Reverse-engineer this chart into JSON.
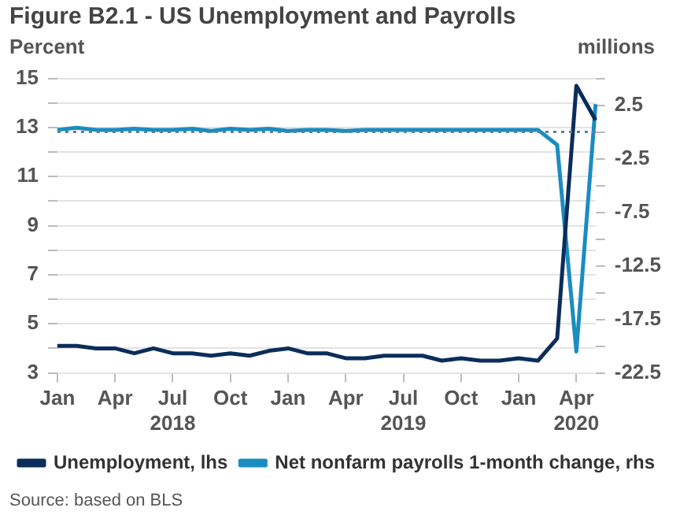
{
  "chart_data": {
    "type": "line",
    "title": "Figure B2.1 - US Unemployment and Payrolls",
    "ylabel": "Percent",
    "y2label": "millions",
    "categories": [
      "Jan",
      null,
      null,
      "Apr",
      null,
      null,
      "Jul\n2018",
      null,
      null,
      "Oct",
      null,
      null,
      "Jan",
      null,
      null,
      "Apr",
      null,
      null,
      "Jul\n2019",
      null,
      null,
      "Oct",
      null,
      null,
      "Jan",
      null,
      null,
      "Apr\n2020",
      null
    ],
    "series": [
      {
        "name": "Unemployment, lhs",
        "color": "#0b2d5b",
        "values": [
          4.1,
          4.1,
          4.0,
          4.0,
          3.8,
          4.0,
          3.8,
          3.8,
          3.7,
          3.8,
          3.7,
          3.9,
          4.0,
          3.8,
          3.8,
          3.6,
          3.6,
          3.7,
          3.7,
          3.7,
          3.5,
          3.6,
          3.5,
          3.5,
          3.6,
          3.5,
          4.4,
          14.7,
          13.3
        ]
      },
      {
        "name": "Net nonfarm payrolls 1-month change, rhs",
        "color": "#1a8cc0",
        "axis": "y2",
        "values": [
          0.2,
          0.4,
          0.2,
          0.2,
          0.3,
          0.2,
          0.2,
          0.3,
          0.1,
          0.3,
          0.2,
          0.3,
          0.1,
          0.2,
          0.2,
          0.1,
          0.2,
          0.2,
          0.2,
          0.2,
          0.2,
          0.2,
          0.2,
          0.2,
          0.2,
          0.2,
          -1.2,
          -20.5,
          2.6
        ]
      }
    ],
    "ylim": [
      3,
      15
    ],
    "yticks": [
      3,
      {
        "value": 4,
        "label": null
      },
      5,
      {
        "value": 6,
        "label": null
      },
      7,
      {
        "value": 8,
        "label": null
      },
      9,
      {
        "value": 10,
        "label": null
      },
      11,
      {
        "value": 12,
        "label": null
      },
      13,
      {
        "value": 14,
        "label": null
      },
      15
    ],
    "y2lim": [
      -22.5,
      5
    ],
    "y2ticks": [
      -22.5,
      {
        "value": -20,
        "label": null
      },
      -17.5,
      {
        "value": -15,
        "label": null
      },
      -12.5,
      {
        "value": -10,
        "label": null
      },
      -7.5,
      {
        "value": -5,
        "label": null
      },
      -2.5,
      {
        "value": 0,
        "label": null
      },
      2.5,
      {
        "value": 5,
        "label": null
      }
    ],
    "ref_lines": [
      {
        "axis": "y2",
        "value": 0,
        "color": "#5a7fa0",
        "line_style": "dotted"
      }
    ],
    "grid": "y",
    "legend": "bottom",
    "marker": "none",
    "line_style": "solid",
    "annotations": [
      "Source: based on BLS"
    ]
  }
}
